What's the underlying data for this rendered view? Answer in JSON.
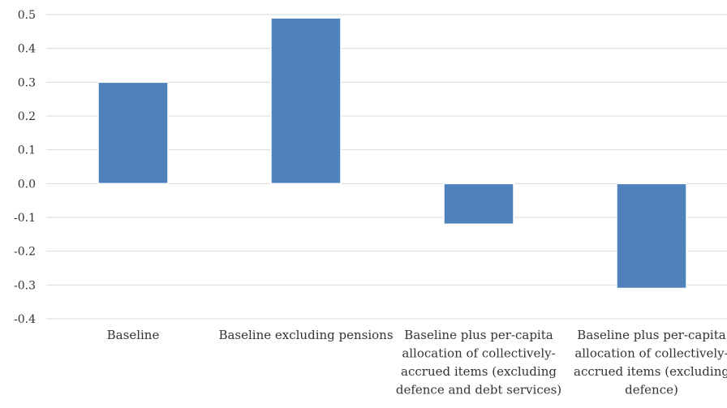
{
  "chart_data": {
    "type": "bar",
    "categories": [
      "Baseline",
      "Baseline excluding pensions",
      "Baseline plus per-capita allocation of collectively-accrued items (excluding defence and debt services)",
      "Baseline plus per-capita allocation of collectively-accrued items (excluding defence)"
    ],
    "category_lines": [
      [
        "Baseline"
      ],
      [
        "Baseline excluding pensions"
      ],
      [
        "Baseline plus per-capita",
        "allocation of collectively-",
        "accrued items (excluding",
        "defence and debt services)"
      ],
      [
        "Baseline plus per-capita",
        "allocation of collectively-",
        "accrued items (excluding",
        "defence)"
      ]
    ],
    "values": [
      0.3,
      0.49,
      -0.12,
      -0.31
    ],
    "ylim": [
      -0.4,
      0.5
    ],
    "yticks": [
      "0.5",
      "0.4",
      "0.3",
      "0.2",
      "0.1",
      "0.0",
      "-0.1",
      "-0.2",
      "-0.3",
      "-0.4"
    ],
    "ytick_values": [
      0.5,
      0.4,
      0.3,
      0.2,
      0.1,
      0.0,
      -0.1,
      -0.2,
      -0.3,
      -0.4
    ],
    "title": "",
    "xlabel": "",
    "ylabel": "",
    "grid": true,
    "bar_color": "#4f81bd"
  }
}
